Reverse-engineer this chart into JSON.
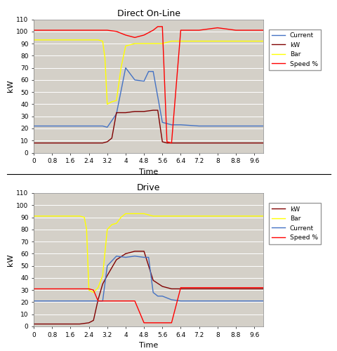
{
  "top_title": "Direct On-Line",
  "bottom_title": "Drive",
  "xlabel": "Time",
  "ylabel": "kW",
  "ylim": [
    0,
    110
  ],
  "xlim": [
    0,
    10.0
  ],
  "xticks": [
    0,
    0.8,
    1.6,
    2.4,
    3.2,
    4.0,
    4.8,
    5.6,
    6.4,
    7.2,
    8.0,
    8.8,
    9.6
  ],
  "yticks": [
    0,
    10,
    20,
    30,
    40,
    50,
    60,
    70,
    80,
    90,
    100,
    110
  ],
  "bg_color": "#d4d0c8",
  "top_current": {
    "x": [
      0,
      0.8,
      1.6,
      2.4,
      2.6,
      3.0,
      3.2,
      3.6,
      4.0,
      4.4,
      4.8,
      5.0,
      5.2,
      5.6,
      6.0,
      6.4,
      7.2,
      8.0,
      8.8,
      9.6,
      10.0
    ],
    "y": [
      22,
      22,
      22,
      22,
      22,
      22,
      21,
      32,
      70,
      60,
      59,
      67,
      67,
      25,
      23,
      23,
      22,
      22,
      22,
      22,
      22
    ],
    "color": "#4472c4",
    "label": "Current"
  },
  "top_kw": {
    "x": [
      0,
      0.8,
      1.6,
      2.4,
      2.8,
      3.0,
      3.2,
      3.4,
      3.6,
      4.0,
      4.4,
      4.8,
      5.2,
      5.4,
      5.6,
      5.8,
      6.0,
      6.4,
      7.2,
      8.0,
      8.8,
      9.6,
      10.0
    ],
    "y": [
      8,
      8,
      8,
      8,
      8,
      8,
      9,
      12,
      33,
      33,
      34,
      34,
      35,
      35,
      9,
      8,
      8,
      8,
      8,
      8,
      8,
      8,
      8
    ],
    "color": "#800000",
    "label": "kW"
  },
  "top_bar": {
    "x": [
      0,
      0.8,
      1.6,
      2.4,
      2.8,
      3.0,
      3.1,
      3.2,
      3.4,
      3.6,
      3.8,
      4.0,
      4.4,
      4.8,
      5.2,
      5.6,
      6.0,
      6.4,
      7.2,
      8.0,
      8.8,
      9.6,
      10.0
    ],
    "y": [
      93,
      93,
      93,
      93,
      93,
      92,
      78,
      40,
      42,
      43,
      70,
      88,
      90,
      90,
      90,
      90,
      92,
      92,
      92,
      92,
      92,
      92,
      92
    ],
    "color": "#ffff00",
    "label": "Bar"
  },
  "top_speed": {
    "x": [
      0,
      0.8,
      1.6,
      2.4,
      3.2,
      3.6,
      4.0,
      4.4,
      4.8,
      5.0,
      5.2,
      5.4,
      5.6,
      5.8,
      6.0,
      6.4,
      7.2,
      8.0,
      8.8,
      9.6,
      10.0
    ],
    "y": [
      101,
      101,
      101,
      101,
      101,
      100,
      97,
      95,
      97,
      99,
      101,
      104,
      104,
      9,
      8,
      101,
      101,
      103,
      101,
      101,
      101
    ],
    "color": "#ff0000",
    "label": "Speed %"
  },
  "bot_kw": {
    "x": [
      0,
      0.8,
      1.6,
      2.0,
      2.4,
      2.6,
      2.8,
      3.0,
      3.2,
      3.6,
      4.0,
      4.4,
      4.8,
      5.2,
      5.6,
      6.0,
      6.4,
      7.2,
      8.0,
      8.8,
      9.6,
      10.0
    ],
    "y": [
      2,
      2,
      2,
      2,
      3,
      5,
      22,
      35,
      42,
      55,
      60,
      62,
      62,
      38,
      33,
      31,
      31,
      31,
      31,
      31,
      31,
      31
    ],
    "color": "#800000",
    "label": "kW"
  },
  "bot_bar": {
    "x": [
      0,
      0.8,
      1.6,
      2.0,
      2.2,
      2.3,
      2.4,
      2.6,
      2.8,
      3.0,
      3.2,
      3.4,
      3.6,
      3.8,
      4.0,
      4.2,
      4.4,
      4.8,
      5.2,
      5.6,
      6.0,
      6.4,
      7.2,
      8.0,
      8.8,
      9.6,
      10.0
    ],
    "y": [
      91,
      91,
      91,
      91,
      90,
      80,
      30,
      28,
      32,
      42,
      80,
      84,
      85,
      90,
      93,
      93,
      93,
      93,
      91,
      91,
      91,
      91,
      91,
      91,
      91,
      91,
      91
    ],
    "color": "#ffff00",
    "label": "Bar"
  },
  "bot_current": {
    "x": [
      0,
      0.8,
      1.6,
      2.0,
      2.4,
      2.8,
      3.0,
      3.2,
      3.6,
      4.0,
      4.4,
      4.8,
      5.0,
      5.2,
      5.4,
      5.6,
      6.0,
      6.4,
      7.2,
      8.0,
      8.8,
      9.6,
      10.0
    ],
    "y": [
      21,
      21,
      21,
      21,
      21,
      21,
      21,
      50,
      58,
      57,
      58,
      57,
      57,
      28,
      25,
      25,
      22,
      21,
      21,
      21,
      21,
      21,
      21
    ],
    "color": "#4472c4",
    "label": "Current"
  },
  "bot_speed": {
    "x": [
      0,
      0.8,
      1.6,
      2.0,
      2.4,
      2.6,
      2.8,
      3.0,
      3.2,
      3.6,
      4.0,
      4.4,
      4.8,
      5.0,
      5.2,
      5.6,
      6.0,
      6.4,
      7.2,
      8.0,
      8.8,
      9.6,
      10.0
    ],
    "y": [
      31,
      31,
      31,
      31,
      31,
      30,
      21,
      21,
      21,
      21,
      21,
      21,
      3,
      3,
      3,
      3,
      3,
      32,
      32,
      32,
      32,
      32,
      32
    ],
    "color": "#ff0000",
    "label": "Speed %"
  },
  "top_legend_order": [
    "Current",
    "kW",
    "Bar",
    "Speed %"
  ],
  "bot_legend_order": [
    "kW",
    "Bar",
    "Current",
    "Speed %"
  ],
  "separator_y": 0.5
}
